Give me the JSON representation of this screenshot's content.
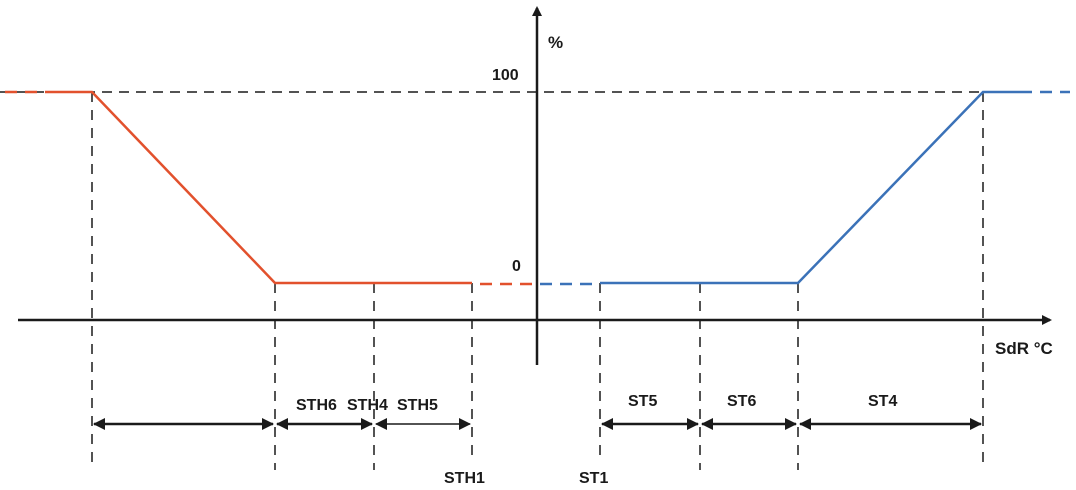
{
  "diagram": {
    "y_axis_unit": "%",
    "x_axis_unit": "SdR °C",
    "y_level_high": "100",
    "y_level_low": "0",
    "colors": {
      "heating": "#e2512d",
      "cooling": "#3b72b8",
      "ink": "#1a1a1a"
    },
    "band_labels": {
      "sth6": "STH6",
      "sth4": "STH4",
      "sth5": "STH5",
      "st5": "ST5",
      "st6": "ST6",
      "st4": "ST4"
    },
    "setpoint_labels": {
      "sth1": "STH1",
      "st1": "ST1"
    }
  }
}
